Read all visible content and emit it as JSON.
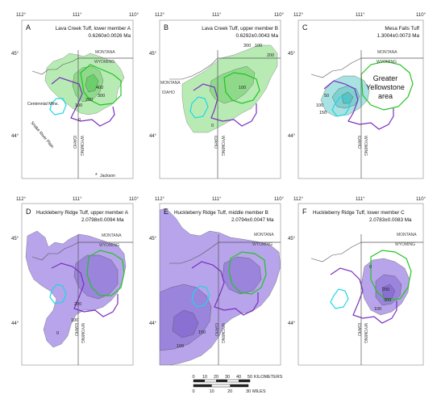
{
  "panels": [
    {
      "letter": "A",
      "title_line1": "Lava Creek Tuff, lower member A",
      "title_line2": "0.6260±0.0026 Ma",
      "contours": [
        "400",
        "300",
        "200",
        "100",
        "0"
      ],
      "labels": [
        "Centennial Mtns.",
        "Snake River Plain",
        "Jackson"
      ],
      "state_labels": [
        "MONTANA",
        "WYOMING",
        "IDAHO"
      ]
    },
    {
      "letter": "B",
      "title_line1": "Lava Creek Tuff, upper member B",
      "title_line2": "0.6292±0.0043 Ma",
      "contours": [
        "300",
        "100",
        "200",
        "100",
        "0"
      ],
      "state_labels": [
        "MONTANA",
        "IDAHO",
        "WYOMING",
        "IDAHO"
      ]
    },
    {
      "letter": "C",
      "title_line1": "Mesa Falls Tuff",
      "title_line2": "1.3004±0.0073 Ma",
      "contours": [
        "50",
        "100",
        "150"
      ],
      "labels": [
        "Greater",
        "Yellowstone",
        "area"
      ],
      "state_labels": [
        "MONTANA",
        "WYOMING",
        "IDAHO"
      ]
    },
    {
      "letter": "D",
      "title_line1": "Huckleberry Ridge Tuff, upper member A",
      "title_line2": "2.0798±0.0094 Ma",
      "contours": [
        "200",
        "100",
        "0"
      ],
      "state_labels": [
        "MONTANA",
        "WYOMING",
        "IDAHO"
      ]
    },
    {
      "letter": "E",
      "title_line1": "Huckleberry Ridge Tuff, middle member B",
      "title_line2": "2.0794±0.0047 Ma",
      "contours": [
        "150",
        "100"
      ],
      "state_labels": [
        "MONTANA",
        "WYOMING",
        "IDAHO"
      ]
    },
    {
      "letter": "F",
      "title_line1": "Huckleberry Ridge Tuff, lower member C",
      "title_line2": "2.0783±0.0083 Ma",
      "contours": [
        "0",
        "200",
        "300",
        "100"
      ],
      "state_labels": [
        "MONTANA",
        "WYOMING",
        "IDAHO"
      ]
    }
  ],
  "axes": {
    "lon_labels": [
      "112°",
      "111°",
      "110°"
    ],
    "lat_labels": [
      "45°",
      "44°"
    ]
  },
  "scale": {
    "km_ticks": [
      "0",
      "10",
      "20",
      "30",
      "40",
      "50"
    ],
    "km_unit": "KILOMETERS",
    "mi_ticks": [
      "0",
      "10",
      "20",
      "30"
    ],
    "mi_unit": "MILES"
  },
  "colors": {
    "lava_creek": "#a8e8a4",
    "lava_creek_dark": "#6ccf6c",
    "mesa_falls": "#8fd8d8",
    "huckleberry": "#b7a4ea",
    "huckleberry_dark": "#8f78d4",
    "purple_outline": "#7b2fbf",
    "green_outline": "#22c422",
    "cyan_outline": "#1fd6e6"
  }
}
